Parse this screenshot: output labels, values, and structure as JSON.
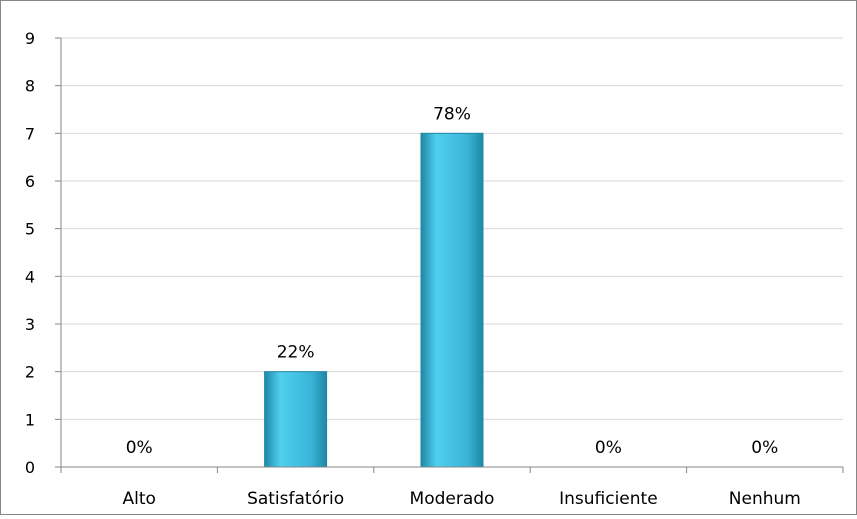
{
  "chart_data": {
    "type": "bar",
    "categories": [
      "Alto",
      "Satisfatório",
      "Moderado",
      "Insuficiente",
      "Nenhum"
    ],
    "values": [
      0,
      2,
      7,
      0,
      0
    ],
    "data_labels": [
      "0%",
      "22%",
      "78%",
      "0%",
      "0%"
    ],
    "ylim": [
      0,
      9
    ],
    "yticks": [
      0,
      1,
      2,
      3,
      4,
      5,
      6,
      7,
      8,
      9
    ],
    "title": "",
    "xlabel": "",
    "ylabel": "",
    "grid": true,
    "legend": "none",
    "colors": {
      "bar": "#3ab4d8",
      "bar_light": "#4fd0ee",
      "bar_dark": "#1f87a6",
      "gridline": "#d9d9d9",
      "axis": "#868686",
      "border": "#868686"
    }
  }
}
